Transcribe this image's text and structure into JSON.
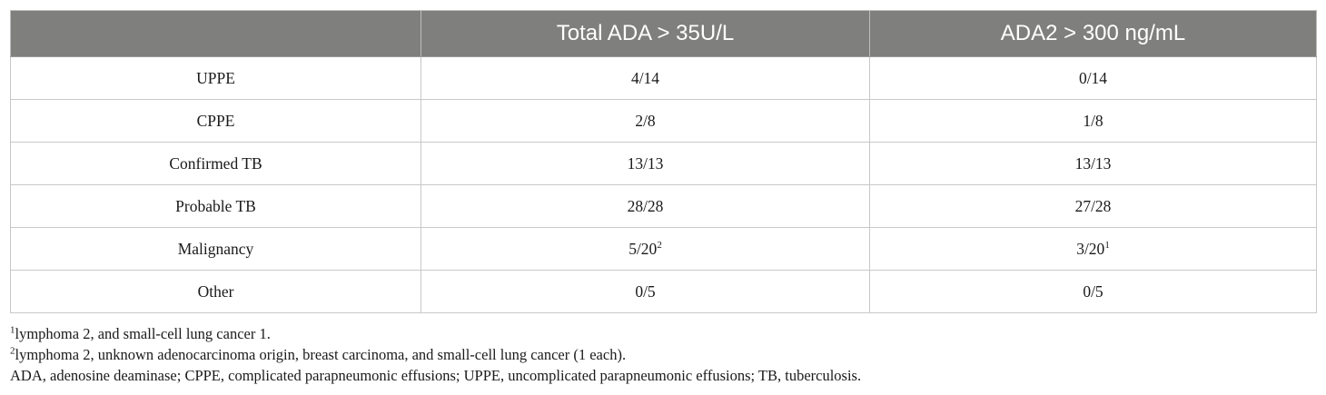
{
  "table": {
    "headers": [
      "",
      "Total ADA > 35U/L",
      "ADA2 > 300 ng/mL"
    ],
    "rows": [
      {
        "label": "UPPE",
        "total_ada": "4/14",
        "total_ada_sup": "",
        "ada2": "0/14",
        "ada2_sup": ""
      },
      {
        "label": "CPPE",
        "total_ada": "2/8",
        "total_ada_sup": "",
        "ada2": "1/8",
        "ada2_sup": ""
      },
      {
        "label": "Confirmed TB",
        "total_ada": "13/13",
        "total_ada_sup": "",
        "ada2": "13/13",
        "ada2_sup": ""
      },
      {
        "label": "Probable TB",
        "total_ada": "28/28",
        "total_ada_sup": "",
        "ada2": "27/28",
        "ada2_sup": ""
      },
      {
        "label": "Malignancy",
        "total_ada": "5/20",
        "total_ada_sup": "2",
        "ada2": "3/20",
        "ada2_sup": "1"
      },
      {
        "label": "Other",
        "total_ada": "0/5",
        "total_ada_sup": "",
        "ada2": "0/5",
        "ada2_sup": ""
      }
    ]
  },
  "footnotes": [
    {
      "marker": "1",
      "text": "lymphoma 2, and small-cell lung cancer 1."
    },
    {
      "marker": "2",
      "text": "lymphoma 2, unknown adenocarcinoma origin, breast carcinoma, and small-cell lung cancer (1 each)."
    },
    {
      "marker": "",
      "text": "ADA, adenosine deaminase; CPPE, complicated parapneumonic effusions; UPPE, uncomplicated parapneumonic effusions; TB, tuberculosis."
    }
  ],
  "colors": {
    "header_bg": "#7f7f7e",
    "header_text": "#ffffff",
    "grid_line": "#c8c8c8"
  }
}
